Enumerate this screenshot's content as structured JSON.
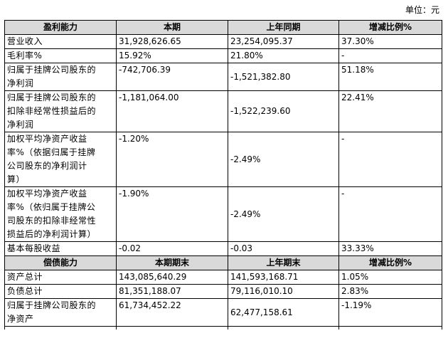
{
  "unit_label": "单位：元",
  "profit": {
    "headers": [
      "盈利能力",
      "本期",
      "上年同期",
      "增减比例%"
    ],
    "rows": [
      {
        "label": [
          "营业收入"
        ],
        "current": "31,928,626.65",
        "previous": "23,254,095.37",
        "change": "37.30%"
      },
      {
        "label": [
          "毛利率%"
        ],
        "current": "15.92%",
        "previous": "21.80%",
        "change": "-"
      },
      {
        "label": [
          "归属于挂牌公司股东的",
          "净利润"
        ],
        "current": "-742,706.39",
        "previous": "-1,521,382.80",
        "change": "51.18%"
      },
      {
        "label": [
          "归属于挂牌公司股东的",
          "扣除非经常性损益后的",
          "净利润"
        ],
        "current": "-1,181,064.00",
        "previous": "-1,522,239.60",
        "change": "22.41%"
      },
      {
        "label": [
          "加权平均净资产收益",
          "率%（依据归属于挂牌",
          "公司股东的净利润计",
          "算）"
        ],
        "current": "-1.20%",
        "previous": "-2.49%",
        "change": "-"
      },
      {
        "label": [
          "加权平均净资产收益",
          "率%（依归属于挂牌公",
          "司股东的扣除非经常性",
          "损益后的净利润计算）"
        ],
        "current": "-1.90%",
        "previous": "-2.49%",
        "change": "-"
      },
      {
        "label": [
          "基本每股收益"
        ],
        "current": "-0.02",
        "previous": "-0.03",
        "change": "33.33%"
      }
    ]
  },
  "solvency": {
    "headers": [
      "偿债能力",
      "本期期末",
      "上年期末",
      "增减比例%"
    ],
    "rows": [
      {
        "label": [
          "资产总计"
        ],
        "current": "143,085,640.29",
        "previous": "141,593,168.71",
        "change": "1.05%"
      },
      {
        "label": [
          "负债总计"
        ],
        "current": "81,351,188.07",
        "previous": "79,116,010.10",
        "change": "2.83%"
      },
      {
        "label": [
          "归属于挂牌公司股东的",
          "净资产"
        ],
        "current": "61,734,452.22",
        "previous": "62,477,158.61",
        "change": "-1.19%"
      }
    ]
  }
}
